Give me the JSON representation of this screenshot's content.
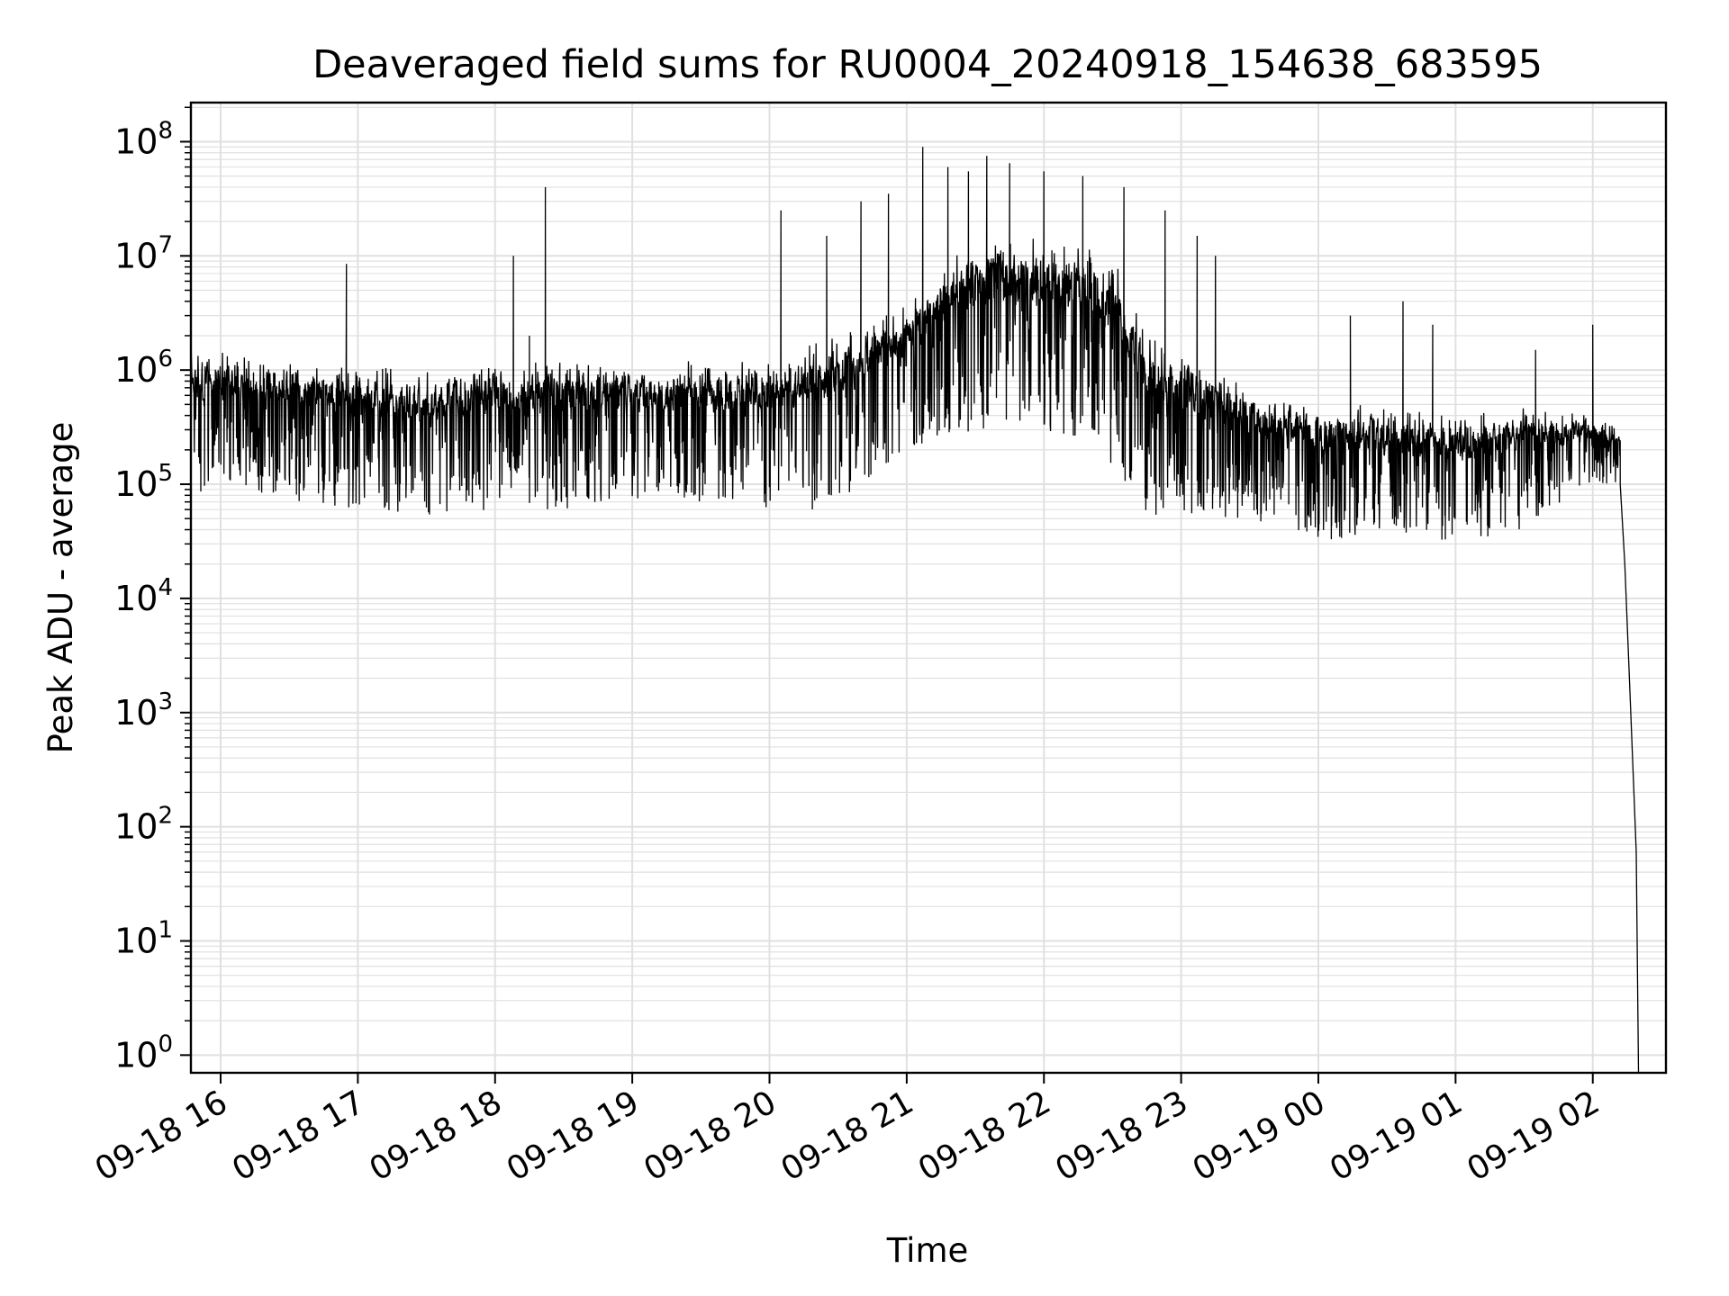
{
  "chart_data": {
    "type": "line",
    "title": "Deaveraged field sums for RU0004_20240918_154638_683595",
    "xlabel": "Time",
    "ylabel": "Peak ADU - average",
    "yscale": "log",
    "xlim": [
      "2024-09-18 15:47",
      "2024-09-19 02:32"
    ],
    "ylim": [
      0.7,
      220000000.0
    ],
    "grid": true,
    "line_color": "#000000",
    "grid_color": "#e0e0e0",
    "xticks": [
      {
        "value": "2024-09-18 16:00",
        "label": "09-18 16"
      },
      {
        "value": "2024-09-18 17:00",
        "label": "09-18 17"
      },
      {
        "value": "2024-09-18 18:00",
        "label": "09-18 18"
      },
      {
        "value": "2024-09-18 19:00",
        "label": "09-18 19"
      },
      {
        "value": "2024-09-18 20:00",
        "label": "09-18 20"
      },
      {
        "value": "2024-09-18 21:00",
        "label": "09-18 21"
      },
      {
        "value": "2024-09-18 22:00",
        "label": "09-18 22"
      },
      {
        "value": "2024-09-18 23:00",
        "label": "09-18 23"
      },
      {
        "value": "2024-09-19 00:00",
        "label": "09-19 00"
      },
      {
        "value": "2024-09-19 01:00",
        "label": "09-19 01"
      },
      {
        "value": "2024-09-19 02:00",
        "label": "09-19 02"
      }
    ],
    "yticks": [
      {
        "value": 1,
        "base": "10",
        "exp": "0"
      },
      {
        "value": 10,
        "base": "10",
        "exp": "1"
      },
      {
        "value": 100,
        "base": "10",
        "exp": "2"
      },
      {
        "value": 1000,
        "base": "10",
        "exp": "3"
      },
      {
        "value": 10000,
        "base": "10",
        "exp": "4"
      },
      {
        "value": 100000,
        "base": "10",
        "exp": "5"
      },
      {
        "value": 1000000,
        "base": "10",
        "exp": "6"
      },
      {
        "value": 10000000,
        "base": "10",
        "exp": "7"
      },
      {
        "value": 100000000,
        "base": "10",
        "exp": "8"
      }
    ],
    "series": [
      {
        "profile": [
          {
            "x": "2024-09-18 15:47",
            "low": 80000.0,
            "high": 1500000.0
          },
          {
            "x": "2024-09-18 16:00",
            "low": 100000.0,
            "high": 1600000.0
          },
          {
            "x": "2024-09-18 16:30",
            "low": 70000.0,
            "high": 1200000.0
          },
          {
            "x": "2024-09-18 17:00",
            "low": 60000.0,
            "high": 1100000.0
          },
          {
            "x": "2024-09-18 17:30",
            "low": 50000.0,
            "high": 1000000.0
          },
          {
            "x": "2024-09-18 18:00",
            "low": 60000.0,
            "high": 1200000.0
          },
          {
            "x": "2024-09-18 18:30",
            "low": 60000.0,
            "high": 1200000.0
          },
          {
            "x": "2024-09-18 19:00",
            "low": 70000.0,
            "high": 1200000.0
          },
          {
            "x": "2024-09-18 19:30",
            "low": 70000.0,
            "high": 1200000.0
          },
          {
            "x": "2024-09-18 20:00",
            "low": 60000.0,
            "high": 1300000.0
          },
          {
            "x": "2024-09-18 20:30",
            "low": 60000.0,
            "high": 2000000.0
          },
          {
            "x": "2024-09-18 21:00",
            "low": 200000.0,
            "high": 4000000.0
          },
          {
            "x": "2024-09-18 21:30",
            "low": 300000.0,
            "high": 15000000.0
          },
          {
            "x": "2024-09-18 22:00",
            "low": 300000.0,
            "high": 15000000.0
          },
          {
            "x": "2024-09-18 22:30",
            "low": 150000.0,
            "high": 10000000.0
          },
          {
            "x": "2024-09-18 22:45",
            "low": 50000.0,
            "high": 2000000.0
          },
          {
            "x": "2024-09-18 23:30",
            "low": 50000.0,
            "high": 700000.0
          },
          {
            "x": "2024-09-19 00:00",
            "low": 30000.0,
            "high": 500000.0
          },
          {
            "x": "2024-09-19 00:30",
            "low": 40000.0,
            "high": 500000.0
          },
          {
            "x": "2024-09-19 01:00",
            "low": 30000.0,
            "high": 400000.0
          },
          {
            "x": "2024-09-19 01:30",
            "low": 40000.0,
            "high": 500000.0
          },
          {
            "x": "2024-09-19 02:00",
            "low": 100000.0,
            "high": 400000.0
          },
          {
            "x": "2024-09-19 02:12",
            "low": 100000.0,
            "high": 300000.0
          }
        ],
        "spikes": [
          {
            "x": "2024-09-18 16:55",
            "y": 8500000.0
          },
          {
            "x": "2024-09-18 18:08",
            "y": 10000000.0
          },
          {
            "x": "2024-09-18 18:22",
            "y": 40000000.0
          },
          {
            "x": "2024-09-18 18:15",
            "y": 2000000.0
          },
          {
            "x": "2024-09-18 20:05",
            "y": 25000000.0
          },
          {
            "x": "2024-09-18 20:25",
            "y": 15000000.0
          },
          {
            "x": "2024-09-18 20:40",
            "y": 30000000.0
          },
          {
            "x": "2024-09-18 20:52",
            "y": 35000000.0
          },
          {
            "x": "2024-09-18 21:07",
            "y": 90000000.0
          },
          {
            "x": "2024-09-18 21:18",
            "y": 60000000.0
          },
          {
            "x": "2024-09-18 21:27",
            "y": 55000000.0
          },
          {
            "x": "2024-09-18 21:35",
            "y": 75000000.0
          },
          {
            "x": "2024-09-18 21:45",
            "y": 65000000.0
          },
          {
            "x": "2024-09-18 22:00",
            "y": 55000000.0
          },
          {
            "x": "2024-09-18 22:17",
            "y": 50000000.0
          },
          {
            "x": "2024-09-18 22:35",
            "y": 40000000.0
          },
          {
            "x": "2024-09-18 22:53",
            "y": 25000000.0
          },
          {
            "x": "2024-09-18 23:07",
            "y": 15000000.0
          },
          {
            "x": "2024-09-18 23:15",
            "y": 10000000.0
          },
          {
            "x": "2024-09-19 00:14",
            "y": 3000000.0
          },
          {
            "x": "2024-09-19 00:37",
            "y": 4000000.0
          },
          {
            "x": "2024-09-19 00:50",
            "y": 2500000.0
          },
          {
            "x": "2024-09-19 01:35",
            "y": 1500000.0
          },
          {
            "x": "2024-09-19 02:00",
            "y": 2500000.0
          }
        ],
        "tail": [
          {
            "x": "2024-09-19 02:12",
            "y": 100000.0
          },
          {
            "x": "2024-09-19 02:14",
            "y": 20000.0
          },
          {
            "x": "2024-09-19 02:16",
            "y": 2000
          },
          {
            "x": "2024-09-19 02:18",
            "y": 200
          },
          {
            "x": "2024-09-19 02:19",
            "y": 60
          },
          {
            "x": "2024-09-19 02:20",
            "y": 0.7
          }
        ]
      }
    ]
  }
}
